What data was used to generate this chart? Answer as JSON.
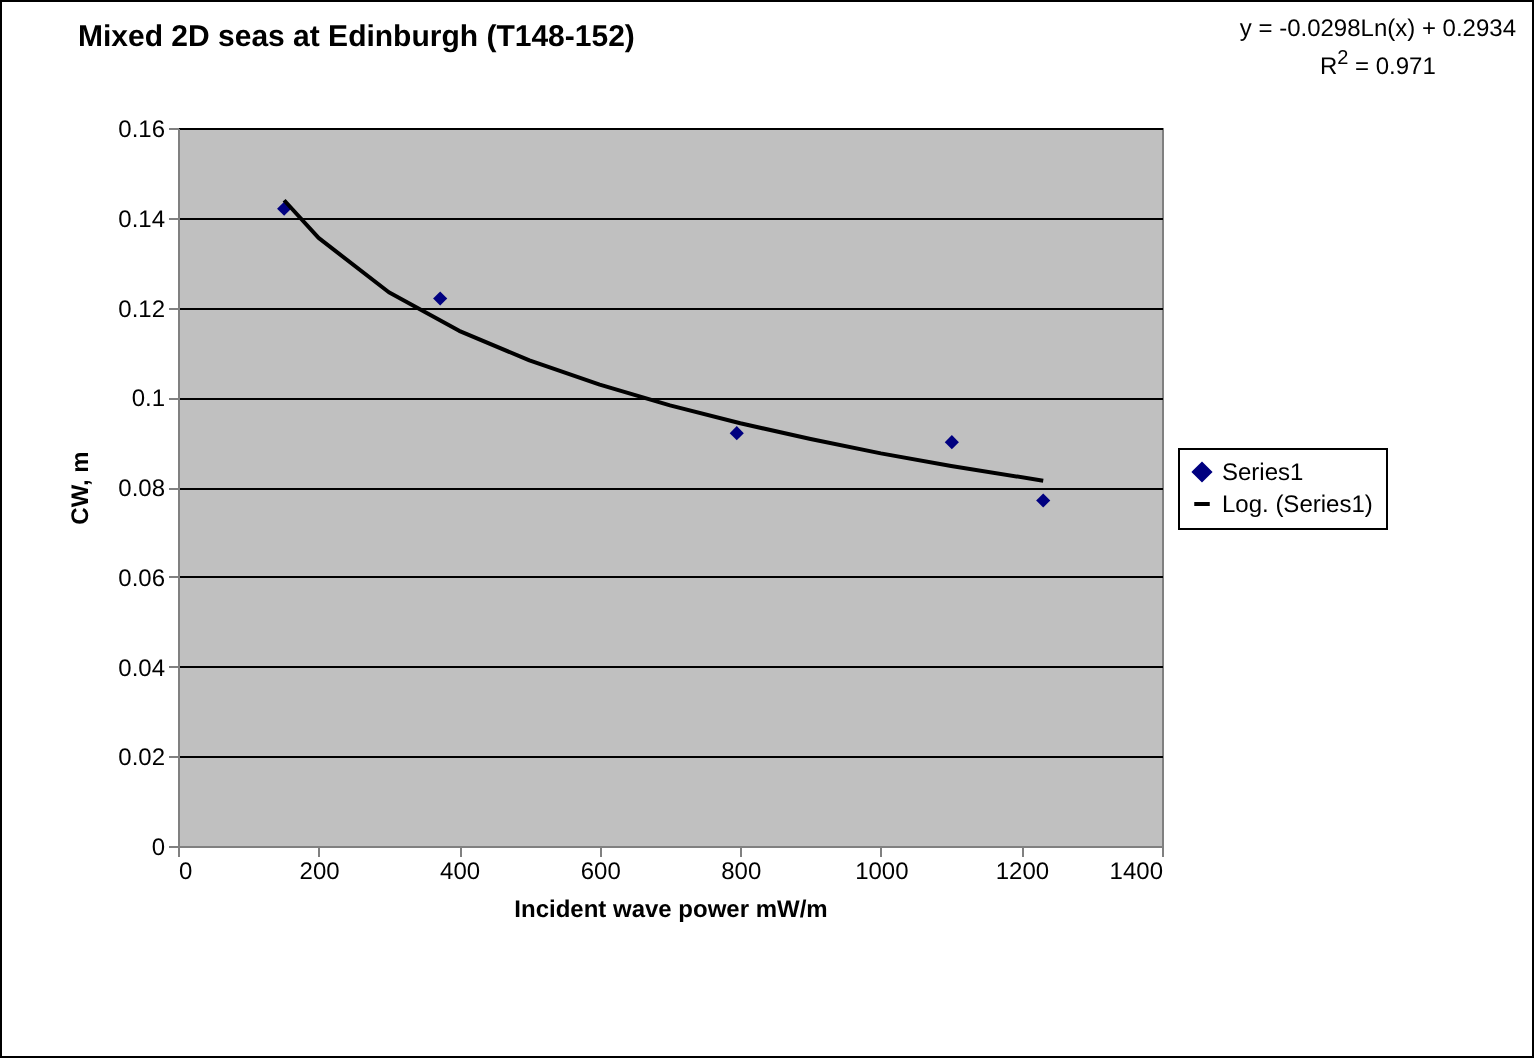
{
  "chart_data": {
    "type": "scatter",
    "title": "Mixed 2D seas at Edinburgh (T148-152)",
    "xlabel": "Incident wave power mW/m",
    "ylabel": "CW, m",
    "annotations": [
      "y = -0.0298Ln(x) + 0.2934",
      "R$^{2}$ = 0.971"
    ],
    "series": [
      {
        "name": "Series1",
        "color": "#000080",
        "marker": "diamond",
        "x": [
          151,
          373,
          795,
          1101,
          1231
        ],
        "values": [
          0.142,
          0.122,
          0.092,
          0.09,
          0.077
        ]
      },
      {
        "name": "Log. (Series1)",
        "type": "line",
        "color": "#000000",
        "line_style": "solid",
        "x": [
          151,
          200,
          300,
          400,
          500,
          600,
          700,
          800,
          900,
          1000,
          1100,
          1231
        ],
        "values": [
          0.1439,
          0.1355,
          0.1234,
          0.1148,
          0.1082,
          0.1028,
          0.0982,
          0.0942,
          0.0907,
          0.0875,
          0.0847,
          0.0814
        ]
      }
    ],
    "xlim": [
      0,
      1400
    ],
    "xticks": [
      0,
      200,
      400,
      600,
      800,
      1000,
      1200,
      1400
    ],
    "ylim": [
      0,
      0.16
    ],
    "yticks": [
      0,
      0.02,
      0.04,
      0.06,
      0.08,
      0.1,
      0.12,
      0.14,
      0.16
    ],
    "grid": "y",
    "legend": "right"
  }
}
